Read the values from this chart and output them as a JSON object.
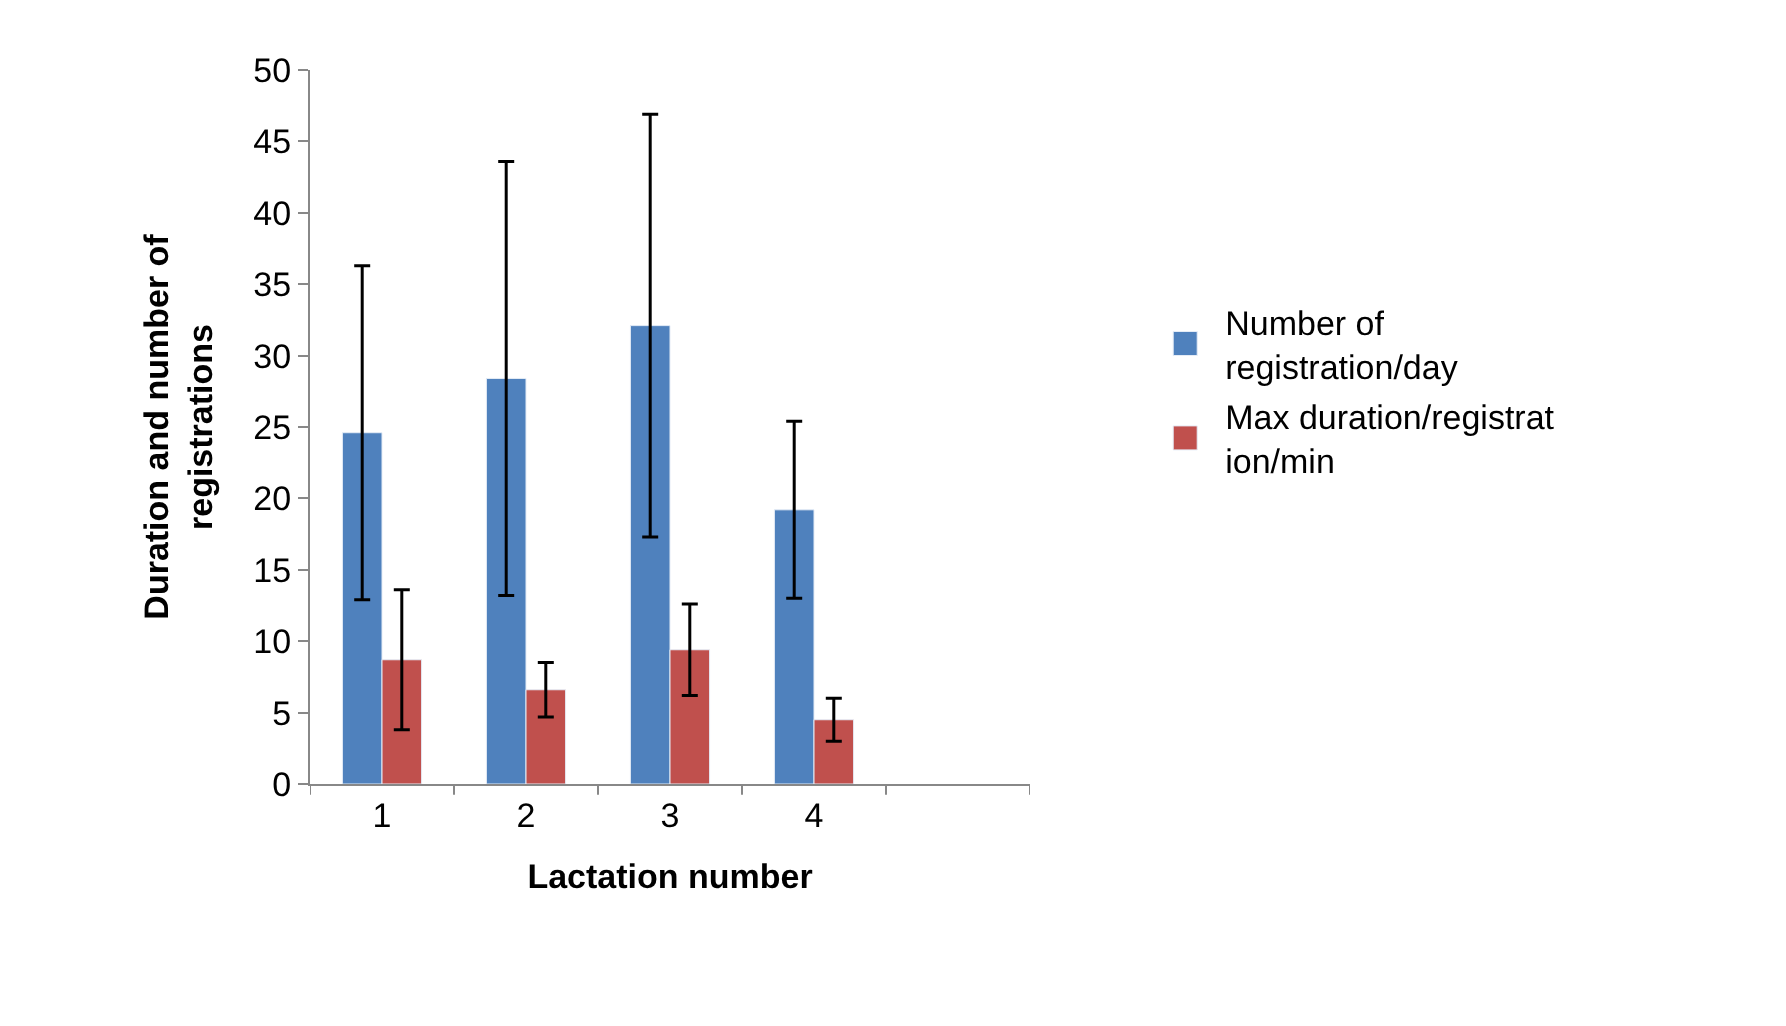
{
  "chart_data": {
    "type": "bar",
    "xlabel": "Lactation number",
    "ylabel": "Duration and number of registrations",
    "categories": [
      "1",
      "2",
      "3",
      "4",
      null
    ],
    "ylim": [
      0,
      50
    ],
    "yticks": [
      0,
      5,
      10,
      15,
      20,
      25,
      30,
      35,
      40,
      45,
      50
    ],
    "grid": false,
    "legend": "right",
    "series": [
      {
        "name": "Number of registration/day",
        "color": "#4f81bd",
        "values": [
          24.6,
          28.4,
          32.1,
          19.2,
          null
        ],
        "errors": [
          11.7,
          15.2,
          14.8,
          6.2,
          null
        ]
      },
      {
        "name": "Max duration/registration/min",
        "color": "#c0504d",
        "values": [
          8.7,
          6.6,
          9.4,
          4.5,
          null
        ],
        "errors": [
          4.9,
          1.9,
          3.2,
          1.5,
          null
        ]
      }
    ]
  }
}
